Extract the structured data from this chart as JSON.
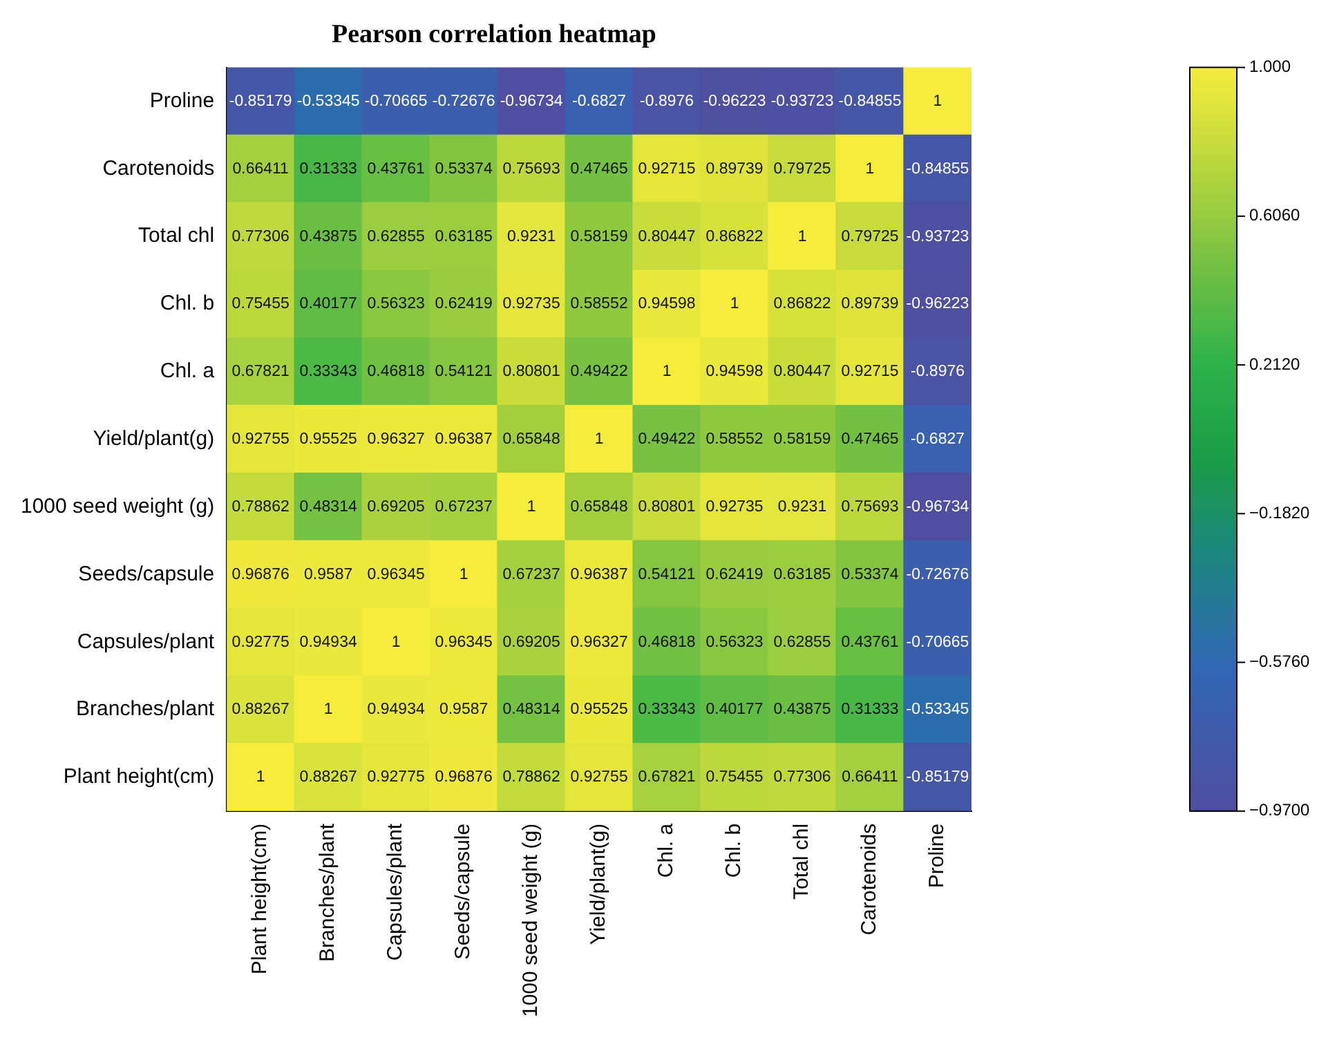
{
  "chart_data": {
    "type": "heatmap",
    "title": "Pearson correlation heatmap",
    "categories": [
      "Plant height(cm)",
      "Branches/plant",
      "Capsules/plant",
      "Seeds/capsule",
      "1000 seed weight (g)",
      "Yield/plant(g)",
      "Chl. a",
      "Chl. b",
      "Total chl",
      "Carotenoids",
      "Proline"
    ],
    "y_categories": [
      "Proline",
      "Carotenoids",
      "Total chl",
      "Chl. b",
      "Chl. a",
      "Yield/plant(g)",
      "1000 seed weight (g)",
      "Seeds/capsule",
      "Capsules/plant",
      "Branches/plant",
      "Plant height(cm)"
    ],
    "cells": [
      [
        -0.85179,
        -0.53345,
        -0.70665,
        -0.72676,
        -0.96734,
        -0.6827,
        -0.8976,
        -0.96223,
        -0.93723,
        -0.84855,
        1
      ],
      [
        0.66411,
        0.31333,
        0.43761,
        0.53374,
        0.75693,
        0.47465,
        0.92715,
        0.89739,
        0.79725,
        1,
        -0.84855
      ],
      [
        0.77306,
        0.43875,
        0.62855,
        0.63185,
        0.9231,
        0.58159,
        0.80447,
        0.86822,
        1,
        0.79725,
        -0.93723
      ],
      [
        0.75455,
        0.40177,
        0.56323,
        0.62419,
        0.92735,
        0.58552,
        0.94598,
        1,
        0.86822,
        0.89739,
        -0.96223
      ],
      [
        0.67821,
        0.33343,
        0.46818,
        0.54121,
        0.80801,
        0.49422,
        1,
        0.94598,
        0.80447,
        0.92715,
        -0.8976
      ],
      [
        0.92755,
        0.95525,
        0.96327,
        0.96387,
        0.65848,
        1,
        0.49422,
        0.58552,
        0.58159,
        0.47465,
        -0.6827
      ],
      [
        0.78862,
        0.48314,
        0.69205,
        0.67237,
        1,
        0.65848,
        0.80801,
        0.92735,
        0.9231,
        0.75693,
        -0.96734
      ],
      [
        0.96876,
        0.9587,
        0.96345,
        1,
        0.67237,
        0.96387,
        0.54121,
        0.62419,
        0.63185,
        0.53374,
        -0.72676
      ],
      [
        0.92775,
        0.94934,
        1,
        0.96345,
        0.69205,
        0.96327,
        0.46818,
        0.56323,
        0.62855,
        0.43761,
        -0.70665
      ],
      [
        0.88267,
        1,
        0.94934,
        0.9587,
        0.48314,
        0.95525,
        0.33343,
        0.40177,
        0.43875,
        0.31333,
        -0.53345
      ],
      [
        1,
        0.88267,
        0.92775,
        0.96876,
        0.78862,
        0.92755,
        0.67821,
        0.75455,
        0.77306,
        0.66411,
        -0.85179
      ]
    ],
    "clim": [
      -0.97,
      1
    ],
    "cticks": [
      {
        "value": 1,
        "label": "1.000"
      },
      {
        "value": 0.606,
        "label": "0.6060"
      },
      {
        "value": 0.212,
        "label": "0.2120"
      },
      {
        "value": -0.182,
        "label": "−0.1820"
      },
      {
        "value": -0.576,
        "label": "−0.5760"
      },
      {
        "value": -0.97,
        "label": "−0.9700"
      }
    ],
    "data_labels": true,
    "grid": false
  }
}
